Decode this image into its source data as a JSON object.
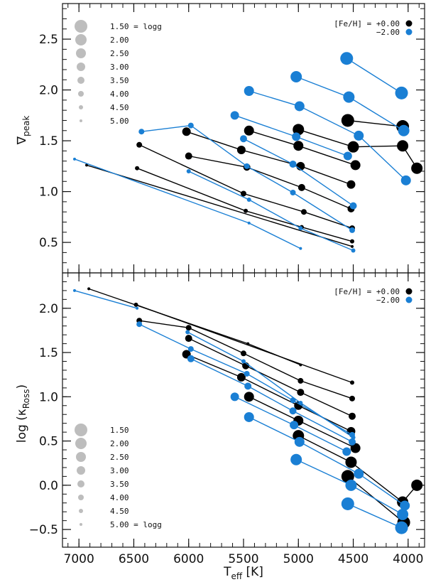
{
  "chart_data": {
    "type": "scatter",
    "xlabel": "T_eff [K]",
    "xlim": [
      7150,
      3850
    ],
    "xticks": [
      7000,
      6500,
      6000,
      5500,
      5000,
      4500,
      4000
    ],
    "colors": {
      "feh_0": "#000000",
      "feh_m2": "#1a7fd4",
      "size_legend": "#bdbdbd"
    },
    "metallicity_legend": {
      "label_0": "[Fe/H] = +0.00",
      "label_m2": "−2.00"
    },
    "panels": [
      {
        "id": "top",
        "ylabel": "∇peak",
        "ylim": [
          0.2,
          2.85
        ],
        "yticks": [
          0.5,
          1.0,
          1.5,
          2.0,
          2.5
        ],
        "ytick_labels": [
          "0.5",
          "1.0",
          "1.5",
          "2.0",
          "2.5"
        ],
        "size_legend": [
          "1.50 = logg",
          "2.00",
          "2.50",
          "3.00",
          "3.50",
          "4.00",
          "4.50",
          "5.00"
        ],
        "series": [
          {
            "feh": 0,
            "logg": 1.5,
            "points": [
              [
                4550,
                1.7
              ],
              [
                4050,
                1.64
              ]
            ]
          },
          {
            "feh": 0,
            "logg": 2.0,
            "points": [
              [
                5000,
                1.61
              ],
              [
                4500,
                1.44
              ],
              [
                4050,
                1.45
              ],
              [
                3920,
                1.23
              ]
            ]
          },
          {
            "feh": 0,
            "logg": 2.5,
            "points": [
              [
                5450,
                1.6
              ],
              [
                5000,
                1.45
              ],
              [
                4480,
                1.26
              ]
            ]
          },
          {
            "feh": 0,
            "logg": 3.0,
            "points": [
              [
                6020,
                1.59
              ],
              [
                5520,
                1.41
              ],
              [
                4980,
                1.25
              ],
              [
                4520,
                1.07
              ]
            ]
          },
          {
            "feh": 0,
            "logg": 3.5,
            "points": [
              [
                6000,
                1.35
              ],
              [
                5470,
                1.24
              ],
              [
                4970,
                1.04
              ],
              [
                4520,
                0.83
              ]
            ]
          },
          {
            "feh": 0,
            "logg": 4.0,
            "points": [
              [
                6450,
                1.46
              ],
              [
                5500,
                0.98
              ],
              [
                4950,
                0.8
              ],
              [
                4510,
                0.64
              ]
            ]
          },
          {
            "feh": 0,
            "logg": 4.5,
            "points": [
              [
                6470,
                1.23
              ],
              [
                5480,
                0.81
              ],
              [
                4970,
                0.65
              ],
              [
                4510,
                0.51
              ]
            ]
          },
          {
            "feh": 0,
            "logg": 5.0,
            "points": [
              [
                6930,
                1.26
              ],
              [
                4510,
                0.46
              ]
            ]
          },
          {
            "feh": -2,
            "logg": 1.5,
            "points": [
              [
                4560,
                2.31
              ],
              [
                4060,
                1.97
              ]
            ]
          },
          {
            "feh": -2,
            "logg": 2.0,
            "points": [
              [
                5020,
                2.13
              ],
              [
                4540,
                1.93
              ],
              [
                4040,
                1.6
              ]
            ]
          },
          {
            "feh": -2,
            "logg": 2.5,
            "points": [
              [
                5450,
                1.99
              ],
              [
                4990,
                1.84
              ],
              [
                4450,
                1.55
              ],
              [
                4020,
                1.11
              ]
            ]
          },
          {
            "feh": -2,
            "logg": 3.0,
            "points": [
              [
                5580,
                1.75
              ],
              [
                5020,
                1.54
              ],
              [
                4550,
                1.35
              ]
            ]
          },
          {
            "feh": -2,
            "logg": 3.5,
            "points": [
              [
                5500,
                1.52
              ],
              [
                5050,
                1.27
              ],
              [
                4500,
                0.86
              ]
            ]
          },
          {
            "feh": -2,
            "logg": 4.0,
            "points": [
              [
                6430,
                1.59
              ],
              [
                5980,
                1.65
              ],
              [
                5470,
                1.25
              ],
              [
                5050,
                0.99
              ],
              [
                4510,
                0.62
              ]
            ]
          },
          {
            "feh": -2,
            "logg": 4.5,
            "points": [
              [
                6000,
                1.2
              ],
              [
                5450,
                0.92
              ],
              [
                4980,
                0.64
              ],
              [
                4500,
                0.42
              ]
            ]
          },
          {
            "feh": -2,
            "logg": 5.0,
            "points": [
              [
                7040,
                1.32
              ],
              [
                5450,
                0.69
              ],
              [
                4980,
                0.44
              ]
            ]
          }
        ]
      },
      {
        "id": "bottom",
        "ylabel": "log (κRoss)",
        "ylim": [
          -0.7,
          2.4
        ],
        "yticks": [
          -0.5,
          0.0,
          0.5,
          1.0,
          1.5,
          2.0
        ],
        "ytick_labels": [
          "−0.5",
          "0.0",
          "0.5",
          "1.0",
          "1.5",
          "2.0"
        ],
        "size_legend": [
          "1.50",
          "2.00",
          "2.50",
          "3.00",
          "3.50",
          "4.00",
          "4.50",
          "5.00 = logg"
        ],
        "series": [
          {
            "feh": 0,
            "logg": 1.5,
            "points": [
              [
                4550,
                0.1
              ],
              [
                4040,
                -0.42
              ]
            ]
          },
          {
            "feh": 0,
            "logg": 2.0,
            "points": [
              [
                5000,
                0.56
              ],
              [
                4520,
                0.26
              ],
              [
                4050,
                -0.19
              ],
              [
                3920,
                0.0
              ]
            ]
          },
          {
            "feh": 0,
            "logg": 2.5,
            "points": [
              [
                5450,
                1.0
              ],
              [
                5000,
                0.73
              ],
              [
                4480,
                0.42
              ]
            ]
          },
          {
            "feh": 0,
            "logg": 3.0,
            "points": [
              [
                6020,
                1.48
              ],
              [
                5520,
                1.22
              ],
              [
                5000,
                0.9
              ],
              [
                4520,
                0.61
              ]
            ]
          },
          {
            "feh": 0,
            "logg": 3.5,
            "points": [
              [
                6000,
                1.66
              ],
              [
                5480,
                1.35
              ],
              [
                4980,
                1.05
              ],
              [
                4510,
                0.78
              ]
            ]
          },
          {
            "feh": 0,
            "logg": 4.0,
            "points": [
              [
                6450,
                1.86
              ],
              [
                6000,
                1.78
              ],
              [
                5500,
                1.49
              ],
              [
                4980,
                1.18
              ],
              [
                4510,
                0.98
              ]
            ]
          },
          {
            "feh": 0,
            "logg": 4.5,
            "points": [
              [
                6480,
                2.04
              ],
              [
                4510,
                1.16
              ]
            ]
          },
          {
            "feh": 0,
            "logg": 5.0,
            "points": [
              [
                6910,
                2.22
              ],
              [
                5460,
                1.6
              ],
              [
                4980,
                1.36
              ]
            ]
          },
          {
            "feh": -2,
            "logg": 1.5,
            "points": [
              [
                4550,
                -0.21
              ],
              [
                4060,
                -0.48
              ]
            ]
          },
          {
            "feh": -2,
            "logg": 2.0,
            "points": [
              [
                5020,
                0.29
              ],
              [
                4520,
                0.0
              ],
              [
                4050,
                -0.33
              ]
            ]
          },
          {
            "feh": -2,
            "logg": 2.5,
            "points": [
              [
                5450,
                0.77
              ],
              [
                4990,
                0.49
              ],
              [
                4450,
                0.13
              ],
              [
                4030,
                -0.23
              ]
            ]
          },
          {
            "feh": -2,
            "logg": 3.0,
            "points": [
              [
                5580,
                1.0
              ],
              [
                5040,
                0.68
              ],
              [
                4560,
                0.38
              ]
            ]
          },
          {
            "feh": -2,
            "logg": 3.5,
            "points": [
              [
                5980,
                1.43
              ],
              [
                5460,
                1.12
              ],
              [
                5050,
                0.84
              ],
              [
                4510,
                0.49
              ]
            ]
          },
          {
            "feh": -2,
            "logg": 4.0,
            "points": [
              [
                6450,
                1.82
              ],
              [
                5980,
                1.54
              ],
              [
                5470,
                1.26
              ],
              [
                5050,
                0.96
              ],
              [
                4510,
                0.57
              ]
            ]
          },
          {
            "feh": -2,
            "logg": 4.5,
            "points": [
              [
                6010,
                1.73
              ],
              [
                5500,
                1.4
              ],
              [
                4980,
                0.93
              ],
              [
                4500,
                0.54
              ]
            ]
          },
          {
            "feh": -2,
            "logg": 5.0,
            "points": [
              [
                7040,
                2.2
              ],
              [
                6470,
                2.0
              ]
            ]
          }
        ]
      }
    ]
  }
}
